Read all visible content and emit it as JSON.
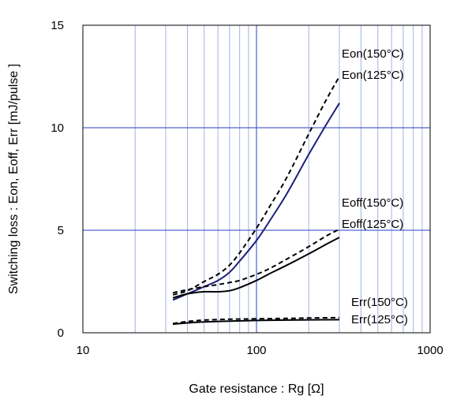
{
  "chart_data": {
    "type": "line",
    "title": "",
    "xlabel": "Gate resistance : Rg [Ω]",
    "ylabel": "Switching loss : Eon, Eoff, Err  [mJ/pulse ]",
    "xscale": "log",
    "xlim": [
      10,
      1000
    ],
    "ylim": [
      0,
      15
    ],
    "x_ticks": [
      10,
      100,
      1000
    ],
    "x_tick_labels": [
      "10",
      "100",
      "1000"
    ],
    "y_ticks": [
      0,
      5,
      10,
      15
    ],
    "y_tick_labels": [
      "0",
      "5",
      "10",
      "15"
    ],
    "grid": true,
    "series": [
      {
        "name": "Eon(150°C)",
        "style": "dashed",
        "color": "#000000",
        "x": [
          33,
          40,
          50,
          60,
          70,
          80,
          100,
          120,
          150,
          200,
          250,
          300
        ],
        "y": [
          1.85,
          2.05,
          2.5,
          2.85,
          3.3,
          3.9,
          5.1,
          6.2,
          7.6,
          9.7,
          11.3,
          12.5
        ]
      },
      {
        "name": "Eon(125°C)",
        "style": "solid",
        "color": "#1f1f7a",
        "x": [
          33,
          40,
          50,
          60,
          70,
          80,
          100,
          120,
          150,
          200,
          250,
          300
        ],
        "y": [
          1.6,
          1.9,
          2.25,
          2.55,
          2.95,
          3.5,
          4.5,
          5.5,
          6.8,
          8.7,
          10.1,
          11.2
        ]
      },
      {
        "name": "Eoff(150°C)",
        "style": "dashed",
        "color": "#000000",
        "x": [
          33,
          40,
          50,
          60,
          70,
          80,
          100,
          120,
          150,
          200,
          250,
          300
        ],
        "y": [
          1.95,
          2.1,
          2.25,
          2.35,
          2.45,
          2.55,
          2.85,
          3.15,
          3.6,
          4.2,
          4.7,
          5.05
        ]
      },
      {
        "name": "Eoff(125°C)",
        "style": "solid",
        "color": "#000000",
        "x": [
          33,
          40,
          50,
          60,
          70,
          80,
          100,
          120,
          150,
          200,
          250,
          300
        ],
        "y": [
          1.7,
          1.9,
          2.0,
          2.0,
          2.05,
          2.2,
          2.55,
          2.9,
          3.3,
          3.85,
          4.3,
          4.65
        ]
      },
      {
        "name": "Err(150°C)",
        "style": "dashed",
        "color": "#000000",
        "x": [
          33,
          40,
          50,
          70,
          100,
          150,
          200,
          300
        ],
        "y": [
          0.45,
          0.55,
          0.62,
          0.66,
          0.68,
          0.7,
          0.72,
          0.74
        ]
      },
      {
        "name": "Err(125°C)",
        "style": "solid",
        "color": "#000000",
        "x": [
          33,
          40,
          50,
          70,
          100,
          150,
          200,
          300
        ],
        "y": [
          0.42,
          0.48,
          0.53,
          0.57,
          0.6,
          0.62,
          0.63,
          0.64
        ]
      }
    ],
    "series_labels": [
      "Eon(150°C)",
      "Eon(125°C)",
      "Eoff(150°C)",
      "Eoff(125°C)",
      "Err(150°C)",
      "Err(125°C)"
    ]
  }
}
